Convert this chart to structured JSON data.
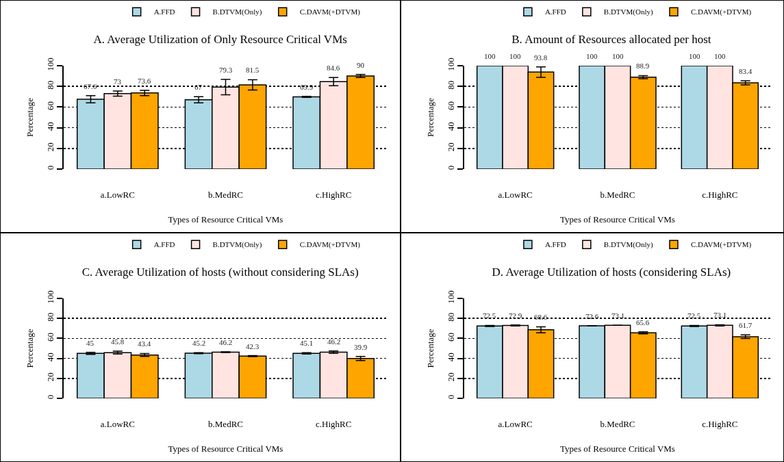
{
  "chart_data": [
    {
      "type": "bar",
      "title": "A. Average Utilization of Only Resource Critical VMs",
      "xlabel": "Types of Resource Critical VMs",
      "ylabel": "Percentage",
      "categories": [
        "a.LowRC",
        "b.MedRC",
        "c.HighRC"
      ],
      "series": [
        {
          "name": "A.FFD",
          "color": "#add8e6",
          "values": [
            67.6,
            67,
            69.9
          ],
          "errors": [
            3.5,
            3,
            0.5
          ]
        },
        {
          "name": "B.DTVM(Only)",
          "color": "#ffe4e1",
          "values": [
            73,
            79.3,
            84.6
          ],
          "errors": [
            2.5,
            7.5,
            4
          ]
        },
        {
          "name": "C.DAVM(+DTVM)",
          "color": "#ffa500",
          "values": [
            73.6,
            81.5,
            90
          ],
          "errors": [
            2.5,
            5,
            1.5
          ]
        }
      ],
      "ylim": [
        0,
        100
      ],
      "yticks": [
        0,
        20,
        40,
        60,
        80,
        100
      ],
      "grid": "y",
      "legend": "top",
      "data_labels": true
    },
    {
      "type": "bar",
      "title": "B. Amount of Resources allocated per host",
      "xlabel": "Types of Resource Critical VMs",
      "ylabel": "Percentage",
      "categories": [
        "a.LowRC",
        "b.MedRC",
        "c.HighRC"
      ],
      "series": [
        {
          "name": "A.FFD",
          "color": "#add8e6",
          "values": [
            100,
            100,
            100
          ]
        },
        {
          "name": "B.DTVM(Only)",
          "color": "#ffe4e1",
          "values": [
            100,
            100,
            100
          ]
        },
        {
          "name": "C.DAVM(+DTVM)",
          "color": "#ffa500",
          "values": [
            93.8,
            88.9,
            83.4
          ],
          "errors": [
            5,
            1.5,
            2
          ]
        }
      ],
      "ylim": [
        0,
        100
      ],
      "yticks": [
        0,
        20,
        40,
        60,
        80,
        100
      ],
      "grid": "y",
      "legend": "top",
      "data_labels": true
    },
    {
      "type": "bar",
      "title": "C. Average Utilization of hosts (without considering SLAs)",
      "xlabel": "Types of Resource Critical VMs",
      "ylabel": "Percentage",
      "categories": [
        "a.LowRC",
        "b.MedRC",
        "c.HighRC"
      ],
      "series": [
        {
          "name": "A.FFD",
          "color": "#add8e6",
          "values": [
            45,
            45.2,
            45.1
          ],
          "errors": [
            1,
            0.5,
            0.7
          ]
        },
        {
          "name": "B.DTVM(Only)",
          "color": "#ffe4e1",
          "values": [
            45.8,
            46.2,
            46.2
          ],
          "errors": [
            1.5,
            0.3,
            1.2
          ]
        },
        {
          "name": "C.DAVM(+DTVM)",
          "color": "#ffa500",
          "values": [
            43.4,
            42.3,
            39.9
          ],
          "errors": [
            1.5,
            0.5,
            2
          ]
        }
      ],
      "ylim": [
        0,
        100
      ],
      "yticks": [
        0,
        20,
        40,
        60,
        80,
        100
      ],
      "grid": "y",
      "legend": "top",
      "data_labels": true
    },
    {
      "type": "bar",
      "title": "D. Average Utilization of hosts (considering SLAs)",
      "xlabel": "Types of Resource Critical VMs",
      "ylabel": "Percentage",
      "categories": [
        "a.LowRC",
        "b.MedRC",
        "c.HighRC"
      ],
      "series": [
        {
          "name": "A.FFD",
          "color": "#add8e6",
          "values": [
            72.5,
            72.6,
            72.5
          ],
          "errors": [
            0.5,
            null,
            0.5
          ]
        },
        {
          "name": "B.DTVM(Only)",
          "color": "#ffe4e1",
          "values": [
            72.9,
            73.1,
            73.1
          ],
          "errors": [
            0.5,
            null,
            0.6
          ]
        },
        {
          "name": "C.DAVM(+DTVM)",
          "color": "#ffa500",
          "values": [
            68.6,
            65.6,
            61.7
          ],
          "errors": [
            3,
            1,
            1.8
          ]
        }
      ],
      "ylim": [
        0,
        100
      ],
      "yticks": [
        0,
        20,
        40,
        60,
        80,
        100
      ],
      "grid": "y",
      "legend": "top",
      "data_labels": true
    }
  ]
}
